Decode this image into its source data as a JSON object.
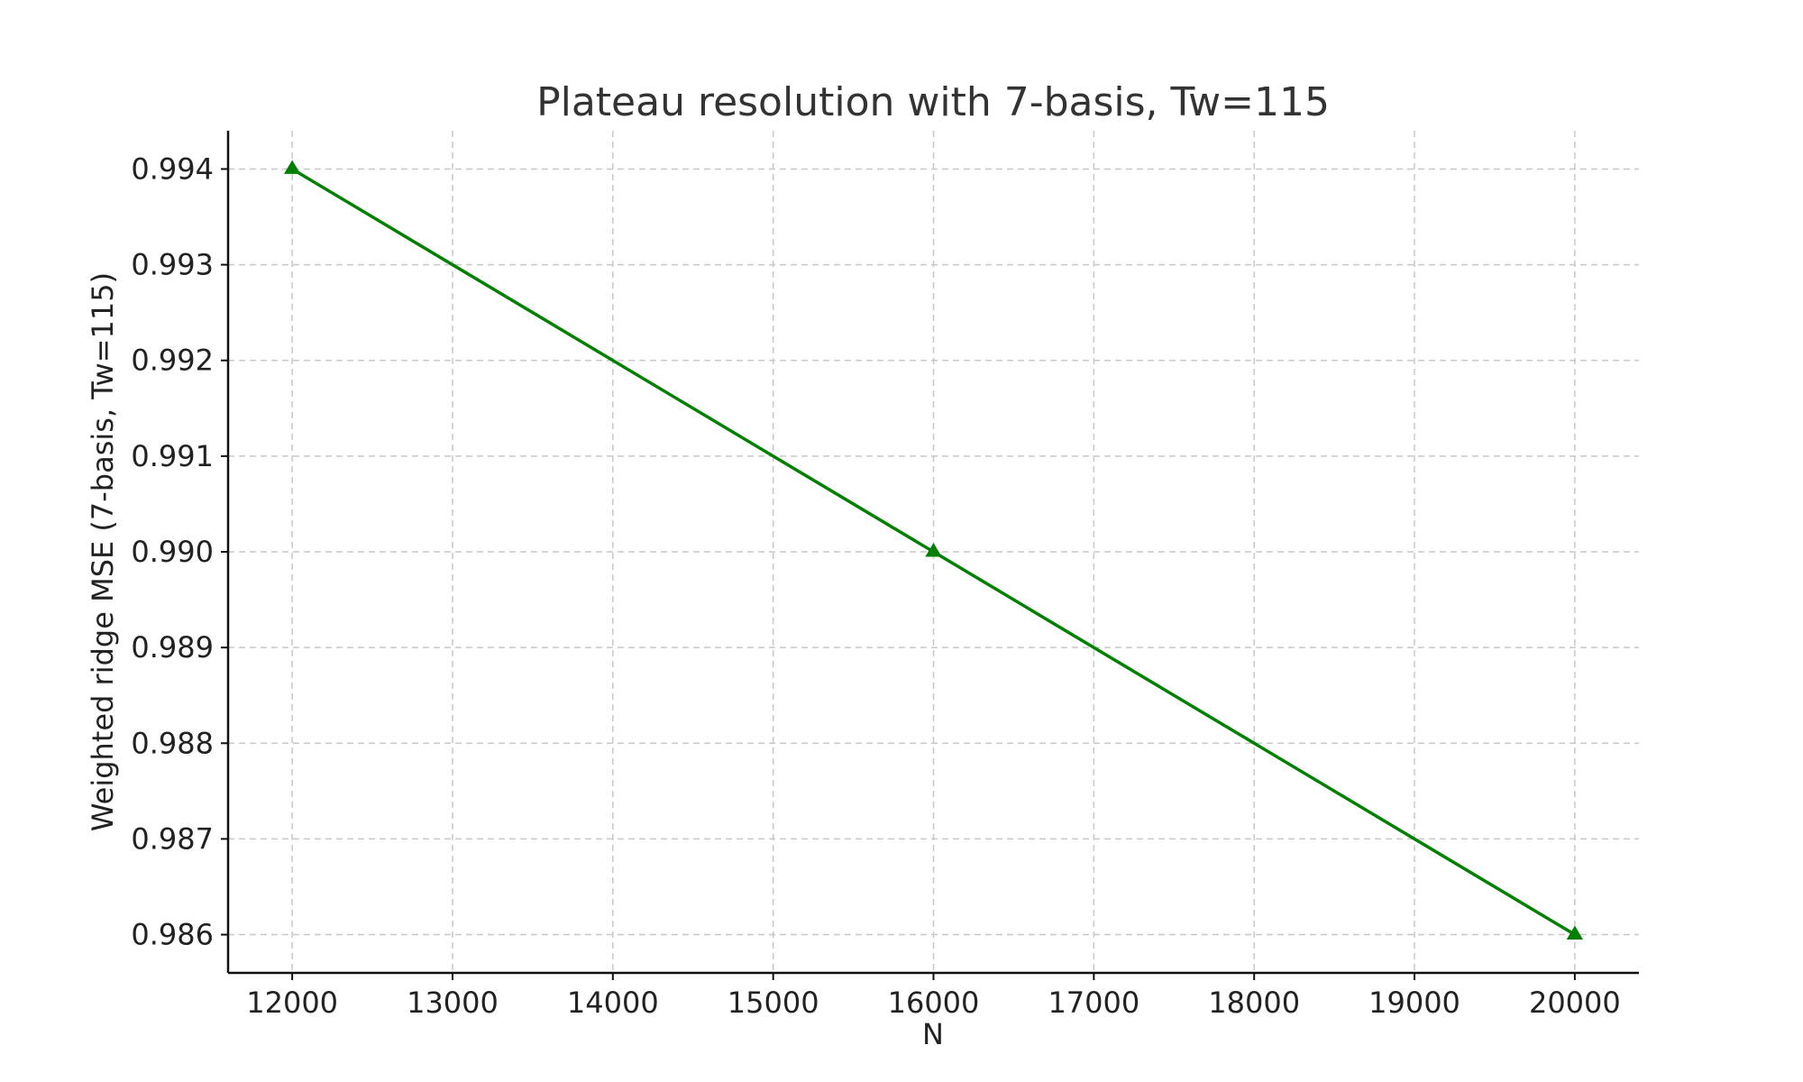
{
  "chart_data": {
    "type": "line",
    "title": "Plateau resolution with 7-basis, Tw=115",
    "xlabel": "N",
    "ylabel": "Weighted ridge MSE (7-basis, Tw=115)",
    "x": [
      12000,
      16000,
      20000
    ],
    "series": [
      {
        "values": [
          0.994,
          0.99,
          0.986
        ],
        "color": "#008000",
        "marker": "triangle-up"
      }
    ],
    "xlim": [
      11600,
      20400
    ],
    "ylim": [
      0.9856,
      0.9944
    ],
    "xticks": [
      12000,
      13000,
      14000,
      15000,
      16000,
      17000,
      18000,
      19000,
      20000
    ],
    "xtick_labels": [
      "12000",
      "13000",
      "14000",
      "15000",
      "16000",
      "17000",
      "18000",
      "19000",
      "20000"
    ],
    "yticks": [
      0.994,
      0.993,
      0.992,
      0.991,
      0.99,
      0.989,
      0.988,
      0.987,
      0.986
    ],
    "ytick_labels": [
      "0.994",
      "0.993",
      "0.992",
      "0.991",
      "0.990",
      "0.989",
      "0.988",
      "0.987",
      "0.986"
    ],
    "grid": true,
    "legend": "none"
  }
}
